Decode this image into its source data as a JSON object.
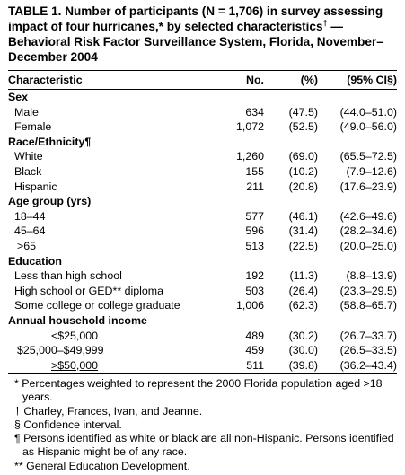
{
  "title": {
    "part1": "TABLE 1. Number of participants (N = 1,706) in survey assessing impact of four hurricanes,* by selected characteristics",
    "dagger": "†",
    "part2": " — Behavioral Risk Factor Surveillance System, Florida, November–December 2004"
  },
  "headers": {
    "characteristic": "Characteristic",
    "no": "No.",
    "pct": "(%)",
    "ci": "(95% CI§)"
  },
  "sections": [
    {
      "label": "Sex",
      "rows": [
        {
          "label": "Male",
          "no": "634",
          "pct": "(47.5)",
          "ci": "(44.0–51.0)"
        },
        {
          "label": "Female",
          "no": "1,072",
          "pct": "(52.5)",
          "ci": "(49.0–56.0)"
        }
      ]
    },
    {
      "label": "Race/Ethnicity¶",
      "rows": [
        {
          "label": "White",
          "no": "1,260",
          "pct": "(69.0)",
          "ci": "(65.5–72.5)"
        },
        {
          "label": "Black",
          "no": "155",
          "pct": "(10.2)",
          "ci": "(7.9–12.6)"
        },
        {
          "label": "Hispanic",
          "no": "211",
          "pct": "(20.8)",
          "ci": "(17.6–23.9)"
        }
      ]
    },
    {
      "label": "Age group (yrs)",
      "rows": [
        {
          "label": "18–44",
          "no": "577",
          "pct": "(46.1)",
          "ci": "(42.6–49.6)"
        },
        {
          "label": "45–64",
          "no": "596",
          "pct": "(31.4)",
          "ci": "(28.2–34.6)"
        },
        {
          "label": ">65",
          "no": "513",
          "pct": "(22.5)",
          "ci": "(20.0–25.0)"
        }
      ]
    },
    {
      "label": "Education",
      "rows": [
        {
          "label": "Less than high school",
          "no": "192",
          "pct": "(11.3)",
          "ci": "(8.8–13.9)"
        },
        {
          "label": "High school or GED** diploma",
          "no": "503",
          "pct": "(26.4)",
          "ci": "(23.3–29.5)"
        },
        {
          "label": "Some college or college graduate",
          "no": "1,006",
          "pct": "(62.3)",
          "ci": "(58.8–65.7)"
        }
      ]
    },
    {
      "label": "Annual household income",
      "rows": [
        {
          "label": "<$25,000",
          "no": "489",
          "pct": "(30.2)",
          "ci": "(26.7–33.7)"
        },
        {
          "label": "$25,000–$49,999",
          "no": "459",
          "pct": "(30.0)",
          "ci": "(26.5–33.5)"
        },
        {
          "label": ">$50,000",
          "no": "511",
          "pct": "(39.8)",
          "ci": "(36.2–43.4)"
        }
      ]
    }
  ],
  "footnotes": [
    {
      "mark": "*",
      "text": "Percentages weighted to represent the 2000 Florida population aged >18 years."
    },
    {
      "mark": "†",
      "text": "Charley, Frances, Ivan, and Jeanne."
    },
    {
      "mark": "§",
      "text": "Confidence interval."
    },
    {
      "mark": "¶",
      "text": "Persons identified as white or black are all non-Hispanic. Persons identified as Hispanic might be of any race."
    },
    {
      "mark": "**",
      "text": "General Education Development."
    }
  ]
}
